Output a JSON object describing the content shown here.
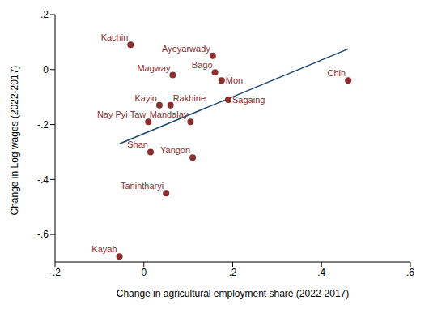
{
  "chart_data": {
    "type": "scatter",
    "x_label": "Change in agricultural employment share (2022-2017)",
    "y_label": "Change in Log wages (2022-2017)",
    "color": "#8b2e2e",
    "marker": "circle",
    "grid": false,
    "xlim": [
      -0.2,
      0.6
    ],
    "xticks": [
      {
        "value": -0.2,
        "label": "-.2"
      },
      0,
      {
        "value": 0.2,
        "label": ".2"
      },
      {
        "value": 0.4,
        "label": ".4"
      },
      {
        "value": 0.6,
        "label": ".6"
      }
    ],
    "ylim": [
      -0.7,
      0.2
    ],
    "yticks": [
      {
        "value": -0.6,
        "label": "-.6"
      },
      {
        "value": -0.4,
        "label": "-.4"
      },
      {
        "value": -0.2,
        "label": "-.2"
      },
      0,
      {
        "value": 0.2,
        "label": ".2"
      }
    ],
    "points": [
      {
        "name": "Kachin",
        "x": -0.03,
        "y": 0.09
      },
      {
        "name": "Ayeyarwady",
        "x": 0.155,
        "y": 0.05
      },
      {
        "name": "Magway",
        "x": 0.065,
        "y": -0.02
      },
      {
        "name": "Bago",
        "x": 0.16,
        "y": -0.01
      },
      {
        "name": "Mon",
        "x": 0.175,
        "y": -0.04
      },
      {
        "name": "Chin",
        "x": 0.46,
        "y": -0.04
      },
      {
        "name": "Sagaing",
        "x": 0.19,
        "y": -0.11
      },
      {
        "name": "Kayin",
        "x": 0.035,
        "y": -0.13
      },
      {
        "name": "Rakhine",
        "x": 0.06,
        "y": -0.13
      },
      {
        "name": "Nay Pyi Taw",
        "x": 0.01,
        "y": -0.19
      },
      {
        "name": "Mandalay",
        "x": 0.105,
        "y": -0.19
      },
      {
        "name": "Shan",
        "x": 0.015,
        "y": -0.3
      },
      {
        "name": "Yangon",
        "x": 0.11,
        "y": -0.32
      },
      {
        "name": "Tanintharyi",
        "x": 0.05,
        "y": -0.45
      },
      {
        "name": "Kayah",
        "x": -0.055,
        "y": -0.68
      }
    ],
    "fit_line": {
      "x": [
        -0.055,
        0.46
      ],
      "y": [
        -0.27,
        0.075
      ],
      "color": "#1a476f",
      "line_style": "solid"
    }
  }
}
